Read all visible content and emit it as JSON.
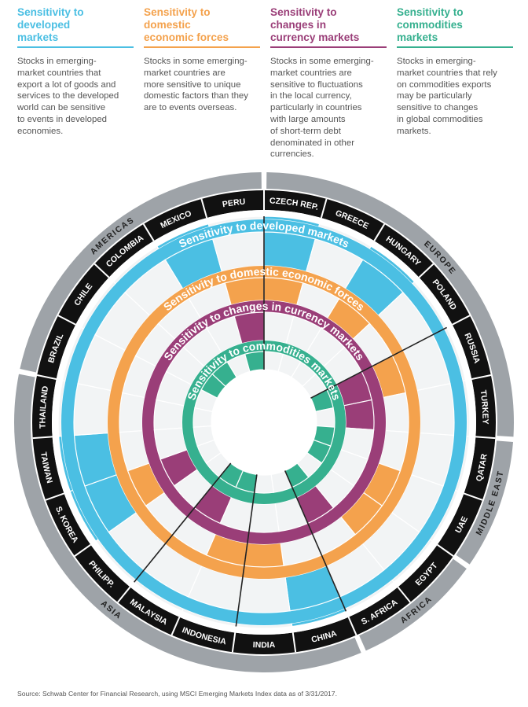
{
  "colors": {
    "developed": "#4bbfe3",
    "domestic": "#f4a24d",
    "currency": "#9a3e78",
    "commodities": "#36b08f",
    "cell": "#f2f4f5",
    "region": "#9ea3a8",
    "band": "#111111"
  },
  "columns": [
    {
      "key": "developed",
      "title": "Sensitivity to developed markets",
      "title_lines": [
        "Sensitivity to",
        "developed",
        "markets"
      ],
      "body_lines": [
        "Stocks in emerging-",
        "market countries that",
        "export a lot of goods and",
        "services to the developed",
        "world can be sensitive",
        "to events in developed",
        "economies."
      ]
    },
    {
      "key": "domestic",
      "title": "Sensitivity to domestic economic forces",
      "title_lines": [
        "Sensitivity to",
        "domestic",
        "economic forces"
      ],
      "body_lines": [
        "Stocks in some emerging-",
        "market countries are",
        "more sensitive to unique",
        "domestic factors than they",
        "are to events overseas."
      ]
    },
    {
      "key": "currency",
      "title": "Sensitivity to changes in currency markets",
      "title_lines": [
        "Sensitivity to",
        "changes in",
        "currency markets"
      ],
      "body_lines": [
        "Stocks in some emerging-",
        "market countries are",
        "sensitive to fluctuations",
        "in the local currency,",
        "particularly in countries",
        "with large amounts",
        "of short-term debt",
        "denominated in other",
        "currencies."
      ]
    },
    {
      "key": "commodities",
      "title": "Sensitivity to commodities markets",
      "title_lines": [
        "Sensitivity to",
        "commodities",
        "markets"
      ],
      "body_lines": [
        "Stocks in emerging-",
        "market countries that rely",
        "on commodities exports",
        "may be particularly",
        "sensitive to changes",
        "in global commodities",
        "markets."
      ]
    }
  ],
  "wheel": {
    "ring_titles": {
      "developed": "Sensitivity to developed markets",
      "domestic": "Sensitivity to domestic economic forces",
      "currency": "Sensitivity to changes in currency markets",
      "commodities": "Sensitivity to commodities markets"
    },
    "regions": [
      {
        "name": "AMERICAS",
        "countries": [
          "BRAZIL",
          "CHILE",
          "COLOMBIA",
          "MEXICO",
          "PERU"
        ]
      },
      {
        "name": "EUROPE",
        "countries": [
          "CZECH REP.",
          "GREECE",
          "HUNGARY",
          "POLAND",
          "RUSSIA",
          "TURKEY"
        ]
      },
      {
        "name": "MIDDLE EAST",
        "countries": [
          "QATAR",
          "UAE"
        ]
      },
      {
        "name": "AFRICA",
        "countries": [
          "EGYPT",
          "S. AFRICA"
        ]
      },
      {
        "name": "ASIA",
        "countries": [
          "CHINA",
          "INDIA",
          "INDONESIA",
          "MALAYSIA",
          "PHILIPP.",
          "S. KOREA",
          "TAIWAN",
          "THAILAND"
        ]
      }
    ],
    "highlights": {
      "developed": [
        "MEXICO",
        "CZECH REP.",
        "HUNGARY",
        "TAIWAN",
        "S. KOREA",
        "CHINA"
      ],
      "domestic": [
        "PERU",
        "CZECH REP.",
        "HUNGARY",
        "RUSSIA",
        "UAE",
        "EGYPT",
        "INDONESIA",
        "INDIA",
        "S. KOREA"
      ],
      "currency": [
        "PERU",
        "RUSSIA",
        "TURKEY",
        "S. AFRICA",
        "MALAYSIA",
        "S. KOREA"
      ],
      "commodities": [
        "COLOMBIA",
        "PERU",
        "RUSSIA",
        "QATAR",
        "UAE",
        "S. AFRICA",
        "INDONESIA",
        "MALAYSIA",
        "CHILE"
      ]
    }
  },
  "source": "Source: Schwab Center for Financial Research, using MSCI Emerging Markets Index data as of 3/31/2017."
}
